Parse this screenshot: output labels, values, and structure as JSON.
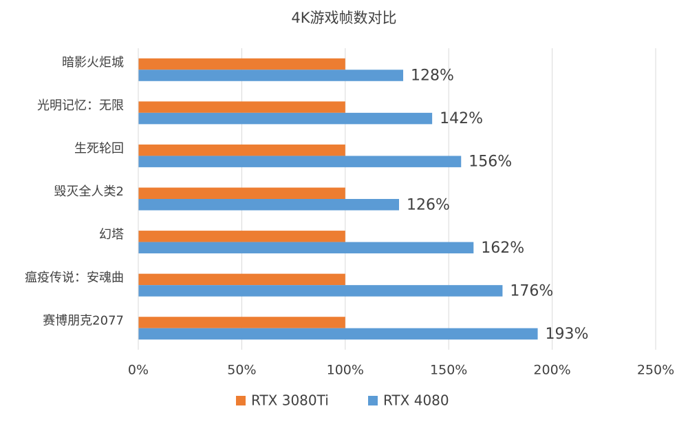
{
  "chart_data": {
    "type": "hbar",
    "title": "4K游戏帧数对比",
    "categories": [
      "暗影火炬城",
      "光明记忆：无限",
      "生死轮回",
      "毁灭全人类2",
      "幻塔",
      "瘟疫传说：安魂曲",
      "赛博朋克2077"
    ],
    "series": [
      {
        "name": "RTX 3080Ti",
        "color": "#ed7d31",
        "values": [
          100,
          100,
          100,
          100,
          100,
          100,
          100
        ]
      },
      {
        "name": "RTX 4080",
        "color": "#5b9bd5",
        "values": [
          128,
          142,
          156,
          126,
          162,
          176,
          193
        ],
        "value_labels": [
          "128%",
          "142%",
          "156%",
          "126%",
          "162%",
          "176%",
          "193%"
        ]
      }
    ],
    "xlim": [
      0,
      250
    ],
    "xticks": [
      {
        "value": 0,
        "label": "0%"
      },
      {
        "value": 50,
        "label": "50%"
      },
      {
        "value": 100,
        "label": "100%"
      },
      {
        "value": 150,
        "label": "150%"
      },
      {
        "value": 200,
        "label": "200%"
      },
      {
        "value": 250,
        "label": "250%"
      }
    ],
    "grid": true,
    "legend": "bottom"
  }
}
